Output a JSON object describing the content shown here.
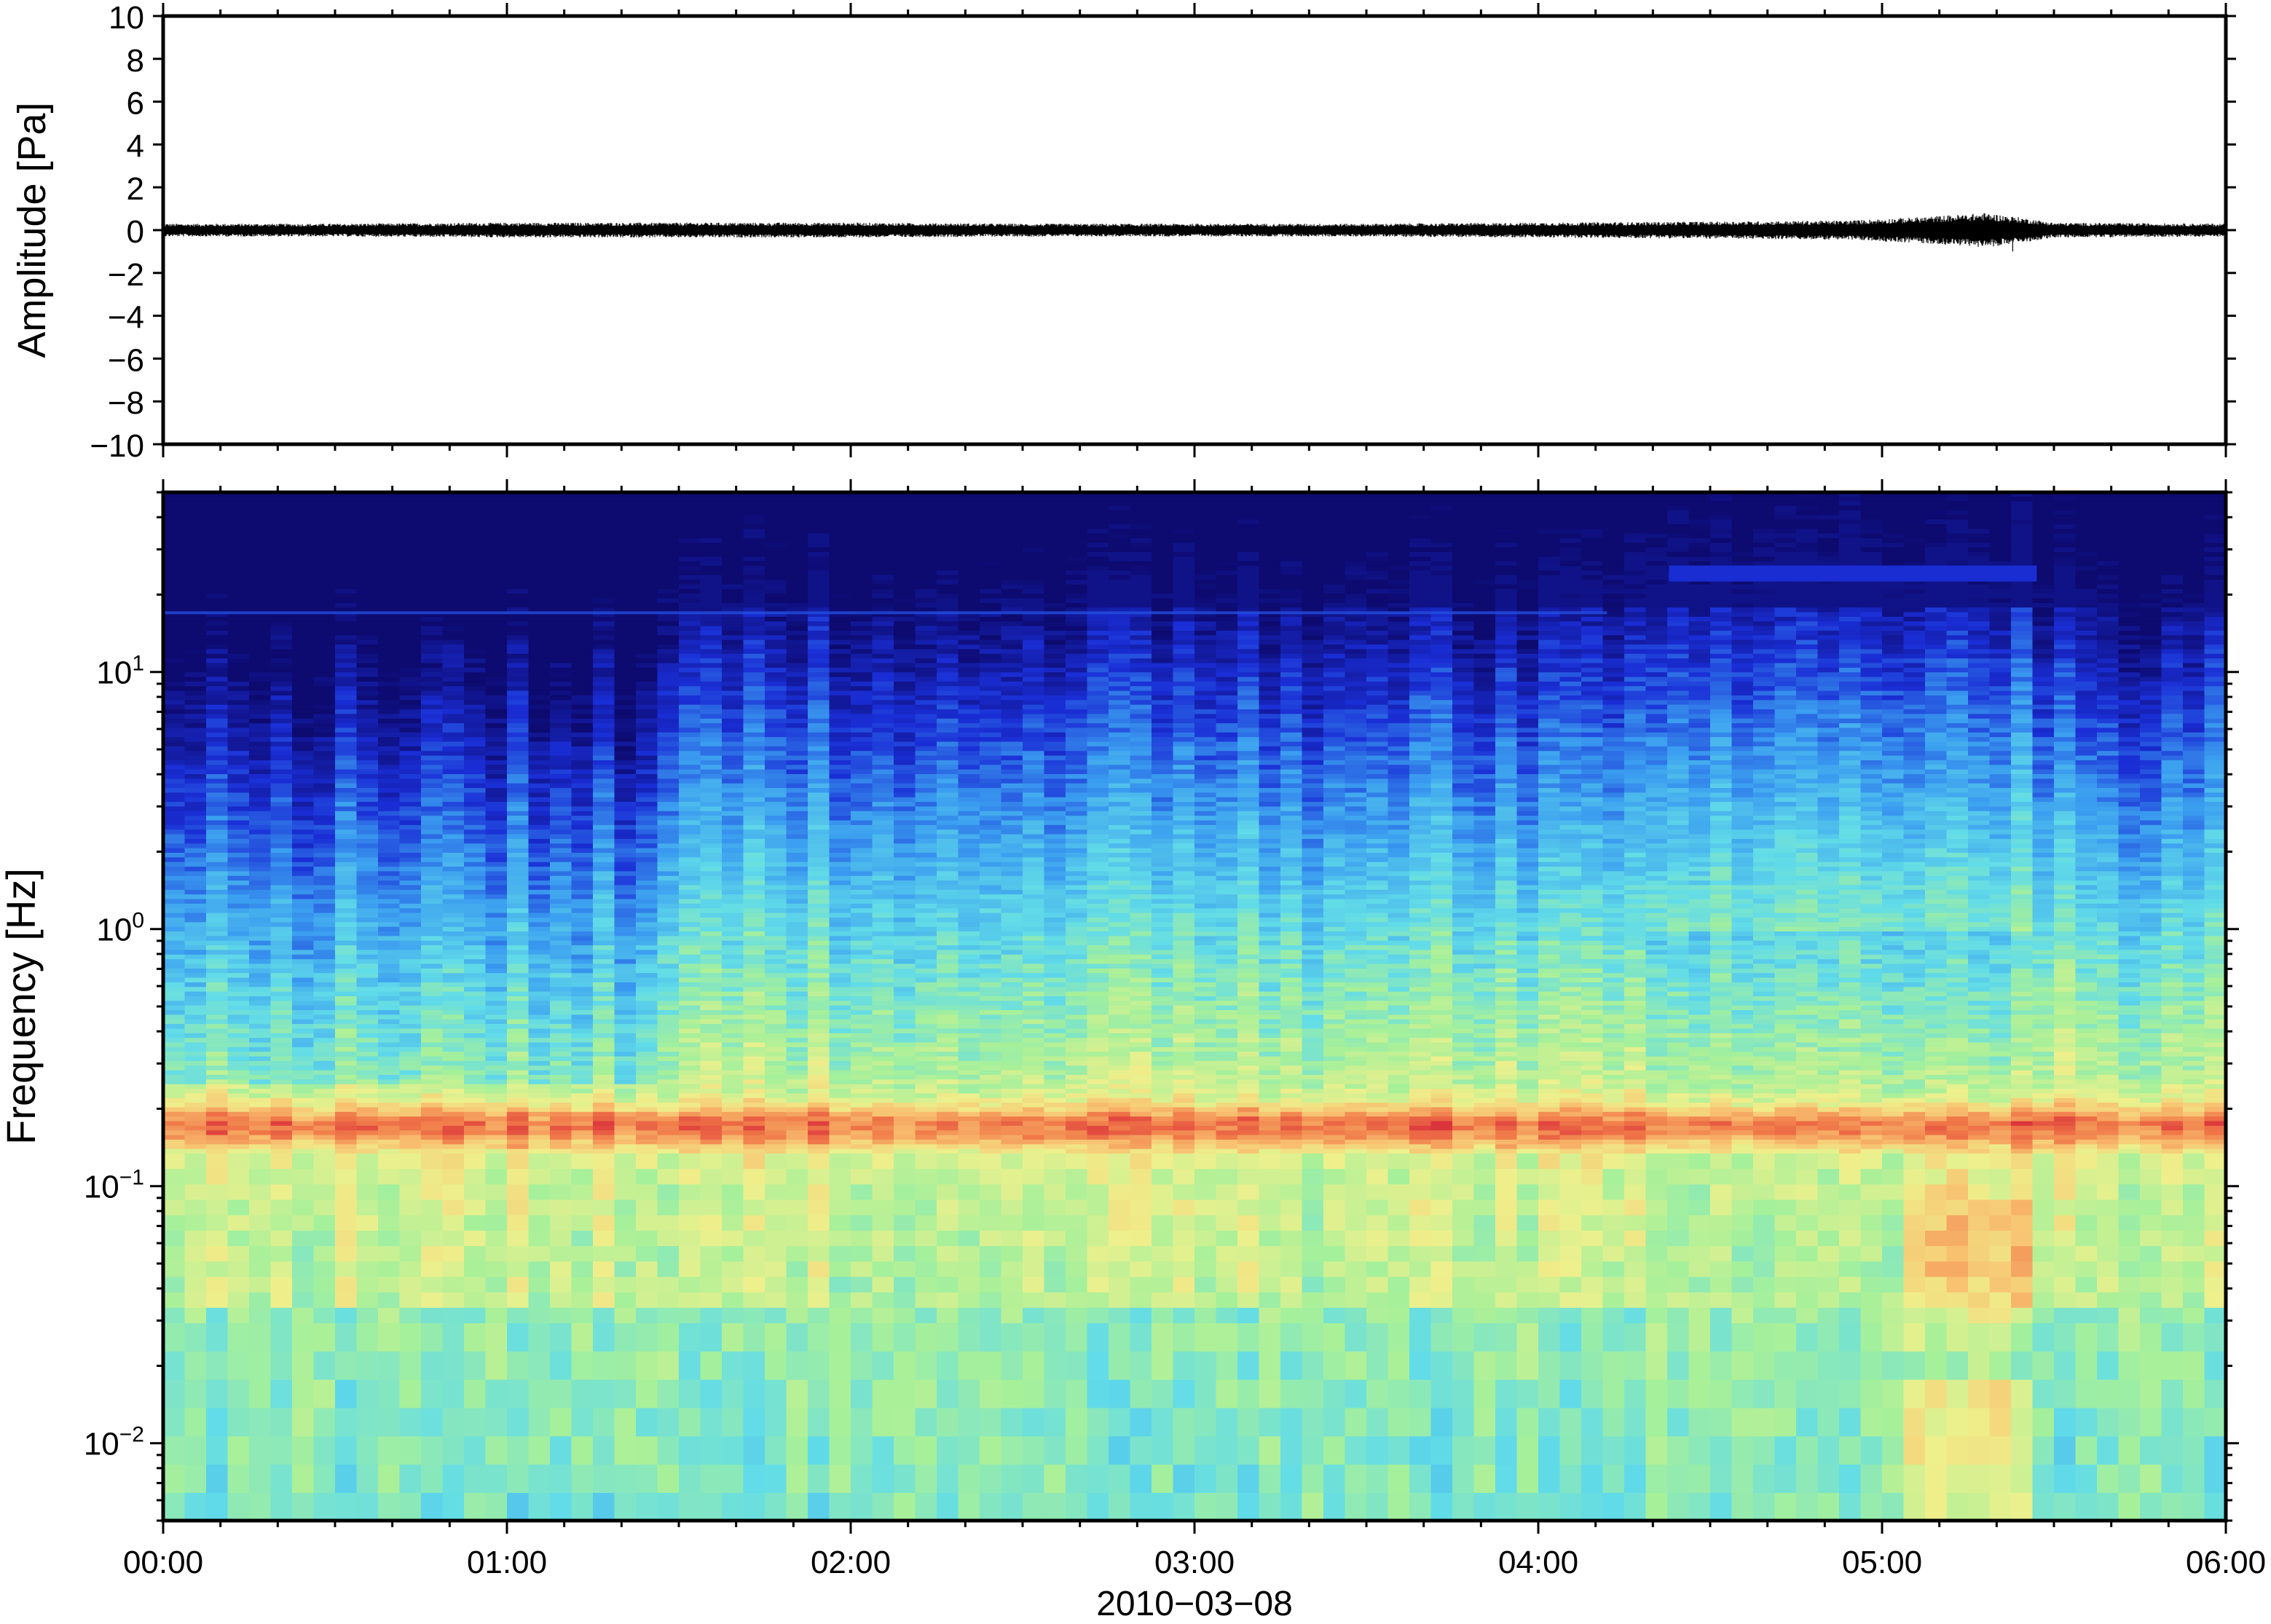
{
  "chart_data": [
    {
      "type": "line",
      "panel": "waveform",
      "ylabel": "Amplitude [Pa]",
      "xlim_hours": [
        0,
        6
      ],
      "ylim": [
        -10,
        10
      ],
      "yticks": [
        10,
        8,
        6,
        4,
        2,
        0,
        -2,
        -4,
        -6,
        -8,
        -10
      ],
      "ytick_labels": [
        "10",
        "8",
        "6",
        "4",
        "2",
        "0",
        "−2",
        "−4",
        "−6",
        "−8",
        "−10"
      ],
      "series": [
        {
          "x_hours": [
            0,
            0.5,
            1,
            1.5,
            2,
            2.5,
            3,
            3.5,
            4,
            4.5,
            4.9,
            5.1,
            5.3,
            5.4,
            5.5,
            6
          ],
          "envelope_amplitude": [
            0.3,
            0.3,
            0.35,
            0.35,
            0.35,
            0.3,
            0.3,
            0.3,
            0.35,
            0.4,
            0.45,
            0.6,
            0.8,
            0.6,
            0.35,
            0.3
          ],
          "color": "#000000"
        }
      ],
      "spike": {
        "x_hours": 5.38,
        "y": -1.0
      }
    },
    {
      "type": "heatmap",
      "panel": "spectrogram",
      "ylabel": "Frequency [Hz]",
      "xlabel": "2010−03−08",
      "yscale": "log",
      "ylim": [
        0.005,
        50
      ],
      "yticks": [
        0.01,
        0.1,
        1,
        10
      ],
      "ytick_labels": [
        {
          "base": "10",
          "exp": "−2"
        },
        {
          "base": "10",
          "exp": "−1"
        },
        {
          "base": "10",
          "exp": "0"
        },
        {
          "base": "10",
          "exp": "1"
        }
      ],
      "xlim_hours": [
        0,
        6
      ],
      "xtick_labels": [
        "00:00",
        "01:00",
        "02:00",
        "03:00",
        "04:00",
        "05:00",
        "06:00"
      ],
      "colormap": [
        "#0d0a70",
        "#1a2ed6",
        "#3b9ef0",
        "#62dce8",
        "#a6f09a",
        "#eef08c",
        "#f8c070",
        "#f07848",
        "#d82a3a"
      ],
      "features": {
        "microbarom_band_hz": 0.17,
        "stormy_interval_hours": [
          5.05,
          5.45
        ],
        "quiet_interval_hours": [
          0,
          1.45
        ],
        "narrowband_line_hz": 17.0,
        "high_band_line_hz": 24.0
      }
    }
  ]
}
